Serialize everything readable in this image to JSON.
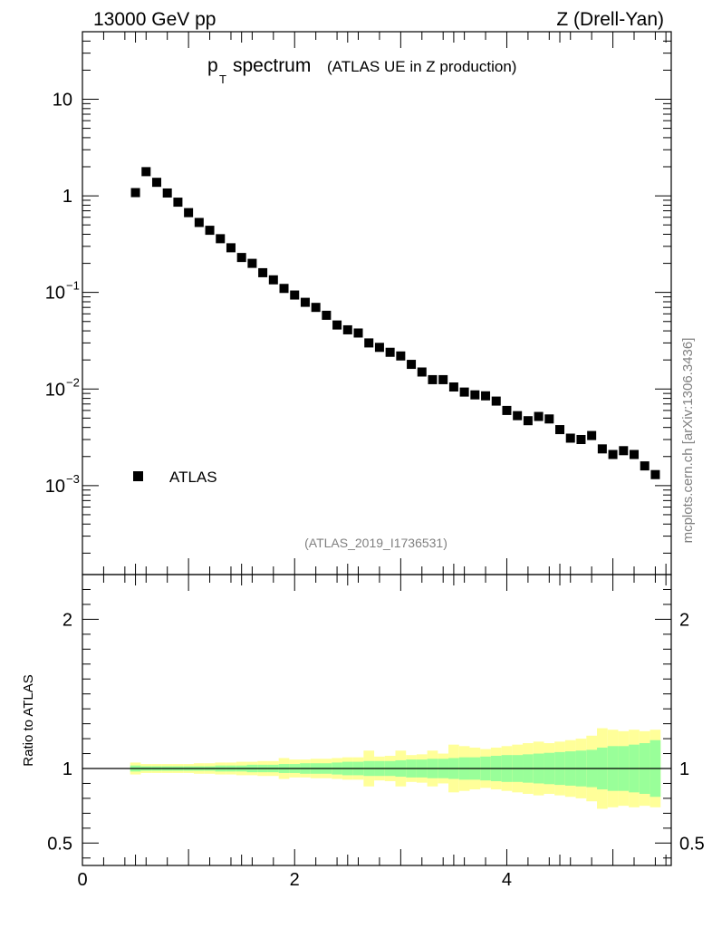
{
  "header": {
    "left": "13000 GeV pp",
    "right": "Z (Drell-Yan)"
  },
  "side_label": "mcplots.cern.ch [arXiv:1306.3436]",
  "analysis_id": "(ATLAS_2019_I1736531)",
  "colors": {
    "marker": "#000000",
    "band_inner": "#99ff99",
    "band_outer": "#ffff99",
    "side": "#808080"
  },
  "chart_data": [
    {
      "type": "scatter",
      "panel": "main",
      "title": "spectrum",
      "title_symbol": "p",
      "title_subscript": "T",
      "subtitle": "(ATLAS UE in Z production)",
      "xlabel": "",
      "ylabel": "",
      "yscale": "log",
      "xlim": [
        0,
        5.55
      ],
      "ylim": [
        0.00012,
        50
      ],
      "y_ticks": [
        {
          "value": 10,
          "label": "10",
          "exp": ""
        },
        {
          "value": 1,
          "label": "1",
          "exp": ""
        },
        {
          "value": 0.1,
          "label": "10",
          "exp": "−1"
        },
        {
          "value": 0.01,
          "label": "10",
          "exp": "−2"
        },
        {
          "value": 0.001,
          "label": "10",
          "exp": "−3"
        }
      ],
      "legend": {
        "entries": [
          "ATLAS"
        ],
        "placement": "bottom-left"
      },
      "series": [
        {
          "name": "ATLAS",
          "x": [
            0.5,
            0.6,
            0.7,
            0.8,
            0.9,
            1.0,
            1.1,
            1.2,
            1.3,
            1.4,
            1.5,
            1.6,
            1.7,
            1.8,
            1.9,
            2.0,
            2.1,
            2.2,
            2.3,
            2.4,
            2.5,
            2.6,
            2.7,
            2.8,
            2.9,
            3.0,
            3.1,
            3.2,
            3.3,
            3.4,
            3.5,
            3.6,
            3.7,
            3.8,
            3.9,
            4.0,
            4.1,
            4.2,
            4.3,
            4.4,
            4.5,
            4.6,
            4.7,
            4.8,
            4.9,
            5.0,
            5.1,
            5.2,
            5.3,
            5.4
          ],
          "y": [
            1.08,
            1.78,
            1.38,
            1.07,
            0.86,
            0.67,
            0.53,
            0.44,
            0.36,
            0.29,
            0.23,
            0.2,
            0.16,
            0.135,
            0.11,
            0.094,
            0.079,
            0.07,
            0.058,
            0.046,
            0.041,
            0.038,
            0.03,
            0.027,
            0.024,
            0.022,
            0.018,
            0.015,
            0.0125,
            0.0125,
            0.0105,
            0.0093,
            0.0087,
            0.0085,
            0.0075,
            0.006,
            0.0053,
            0.0047,
            0.0052,
            0.0049,
            0.0038,
            0.0031,
            0.003,
            0.0033,
            0.0024,
            0.0021,
            0.0023,
            0.0021,
            0.0016,
            0.0013
          ]
        }
      ]
    },
    {
      "type": "area",
      "panel": "ratio",
      "ylabel": "Ratio to ATLAS",
      "xlim": [
        0,
        5.55
      ],
      "ylim": [
        0.35,
        2.3
      ],
      "reference_line": 1,
      "y_ticks": [
        {
          "value": 2,
          "label": "2"
        },
        {
          "value": 1,
          "label": "1"
        },
        {
          "value": 0.5,
          "label": "0.5"
        }
      ],
      "x_ticks": [
        {
          "value": 0,
          "label": "0"
        },
        {
          "value": 2,
          "label": "2"
        },
        {
          "value": 4,
          "label": "4"
        }
      ],
      "bin_low": [
        0.45,
        0.55,
        0.65,
        0.75,
        0.85,
        0.95,
        1.05,
        1.15,
        1.25,
        1.35,
        1.45,
        1.55,
        1.65,
        1.75,
        1.85,
        1.95,
        2.05,
        2.15,
        2.25,
        2.35,
        2.45,
        2.55,
        2.65,
        2.75,
        2.85,
        2.95,
        3.05,
        3.15,
        3.25,
        3.35,
        3.45,
        3.55,
        3.65,
        3.75,
        3.85,
        3.95,
        4.05,
        4.15,
        4.25,
        4.35,
        4.45,
        4.55,
        4.65,
        4.75,
        4.85,
        4.95,
        5.05,
        5.15,
        5.25,
        5.35
      ],
      "bin_high": [
        0.55,
        0.65,
        0.75,
        0.85,
        0.95,
        1.05,
        1.15,
        1.25,
        1.35,
        1.45,
        1.55,
        1.65,
        1.75,
        1.85,
        1.95,
        2.05,
        2.15,
        2.25,
        2.35,
        2.45,
        2.55,
        2.65,
        2.75,
        2.85,
        2.95,
        3.05,
        3.15,
        3.25,
        3.35,
        3.45,
        3.55,
        3.65,
        3.75,
        3.85,
        3.95,
        4.05,
        4.15,
        4.25,
        4.35,
        4.45,
        4.55,
        4.65,
        4.75,
        4.85,
        4.95,
        5.05,
        5.15,
        5.25,
        5.35,
        5.45
      ],
      "stat_err": [
        0.02,
        0.015,
        0.015,
        0.015,
        0.015,
        0.015,
        0.015,
        0.015,
        0.02,
        0.02,
        0.02,
        0.025,
        0.025,
        0.025,
        0.03,
        0.03,
        0.035,
        0.035,
        0.035,
        0.04,
        0.045,
        0.045,
        0.05,
        0.05,
        0.05,
        0.055,
        0.06,
        0.06,
        0.065,
        0.065,
        0.07,
        0.075,
        0.075,
        0.08,
        0.085,
        0.09,
        0.09,
        0.095,
        0.1,
        0.105,
        0.11,
        0.115,
        0.12,
        0.125,
        0.14,
        0.15,
        0.15,
        0.16,
        0.17,
        0.19
      ],
      "total_err": [
        0.04,
        0.03,
        0.03,
        0.03,
        0.03,
        0.03,
        0.035,
        0.035,
        0.04,
        0.04,
        0.045,
        0.045,
        0.05,
        0.05,
        0.07,
        0.06,
        0.06,
        0.065,
        0.065,
        0.07,
        0.075,
        0.075,
        0.12,
        0.08,
        0.085,
        0.12,
        0.09,
        0.095,
        0.12,
        0.1,
        0.16,
        0.15,
        0.14,
        0.13,
        0.14,
        0.15,
        0.16,
        0.17,
        0.18,
        0.17,
        0.18,
        0.19,
        0.2,
        0.22,
        0.27,
        0.26,
        0.25,
        0.26,
        0.25,
        0.26
      ]
    }
  ]
}
